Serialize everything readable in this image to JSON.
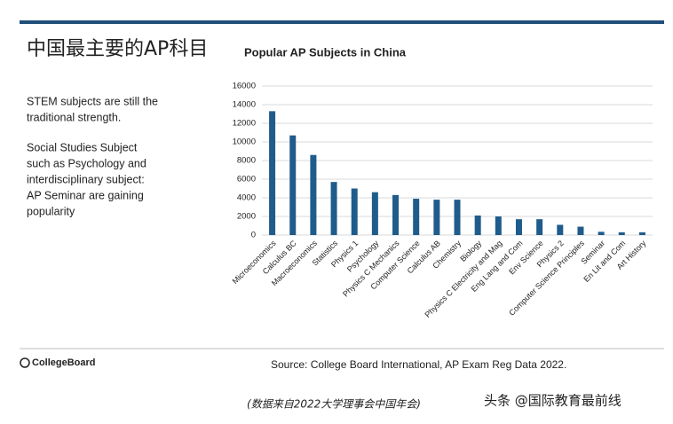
{
  "slide": {
    "title": "中国最主要的AP科目",
    "notes": [
      [
        "STEM subjects are still the",
        "traditional strength."
      ],
      [
        "Social Studies Subject",
        "such as Psychology and",
        "interdisciplinary subject:",
        "AP Seminar are gaining",
        "popularity"
      ]
    ],
    "logo": "CollegeBoard",
    "source": "Source: College Board International, AP Exam Reg Data 2022.",
    "caption": "(数据来自2022大学理事会中国年会)",
    "watermark": "头条 @国际教育最前线"
  },
  "chart_data": {
    "type": "bar",
    "title": "Popular AP Subjects in China",
    "categories": [
      "Microeconomics",
      "Calculus BC",
      "Macroeconomics",
      "Statistics",
      "Physics 1",
      "Psychology",
      "Physics C Mechanics",
      "Computer Science",
      "Calculus AB",
      "Chemistry",
      "Biology",
      "Physics C Electricity and Mag",
      "Eng Lang and Com",
      "Env Science",
      "Physics 2",
      "Computer Science Principles",
      "Seminar",
      "En Lit and Com",
      "Art History"
    ],
    "values": [
      13300,
      10700,
      8600,
      5700,
      5000,
      4600,
      4300,
      3900,
      3800,
      3800,
      2100,
      2000,
      1700,
      1700,
      1100,
      900,
      350,
      300,
      300
    ],
    "color": "#1f5c8b",
    "ylim": [
      0,
      16000
    ],
    "yticks": [
      0,
      2000,
      4000,
      6000,
      8000,
      10000,
      12000,
      14000,
      16000
    ],
    "grid": true
  }
}
